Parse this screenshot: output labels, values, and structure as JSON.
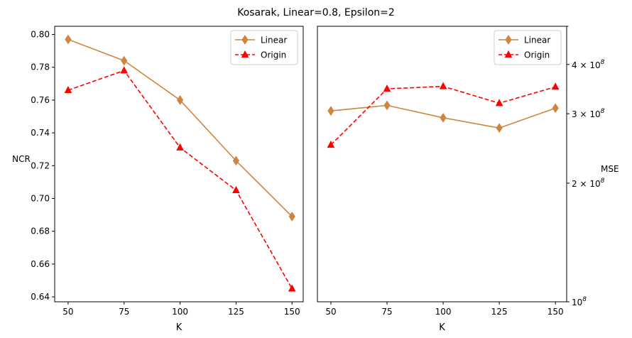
{
  "figure": {
    "title": "Kosarak, Linear=0.8, Epsilon=2"
  },
  "colors": {
    "linear": "#cd853f",
    "origin": "#ff0000",
    "axis": "#000000",
    "background": "#ffffff"
  },
  "chart_data": [
    {
      "type": "line",
      "title": "",
      "xlabel": "K",
      "ylabel": "NCR",
      "x": [
        50,
        75,
        100,
        125,
        150
      ],
      "xticks": [
        "50",
        "75",
        "100",
        "125",
        "150"
      ],
      "xlim": [
        44,
        155
      ],
      "yscale": "linear",
      "ylim": [
        0.637,
        0.805
      ],
      "yticks": [
        0.64,
        0.66,
        0.68,
        0.7,
        0.72,
        0.74,
        0.76,
        0.78,
        0.8
      ],
      "ytick_labels": [
        "0.64",
        "0.66",
        "0.68",
        "0.70",
        "0.72",
        "0.74",
        "0.76",
        "0.78",
        "0.80"
      ],
      "grid": false,
      "legend_position": "top-right",
      "series": [
        {
          "name": "Linear",
          "values": [
            0.797,
            0.784,
            0.76,
            0.723,
            0.689
          ],
          "color": "#cd853f",
          "linestyle": "solid",
          "marker": "diamond"
        },
        {
          "name": "Origin",
          "values": [
            0.766,
            0.778,
            0.731,
            0.705,
            0.645
          ],
          "color": "#ff0000",
          "linestyle": "dashed",
          "marker": "triangle"
        }
      ]
    },
    {
      "type": "line",
      "title": "",
      "xlabel": "K",
      "ylabel": "MSE",
      "ylabel_position": "right",
      "x": [
        50,
        75,
        100,
        125,
        150
      ],
      "xticks": [
        "50",
        "75",
        "100",
        "125",
        "150"
      ],
      "xlim": [
        44,
        155
      ],
      "yscale": "log",
      "ylim": [
        100000000,
        500000000
      ],
      "yticks": [
        100000000,
        200000000,
        300000000,
        400000000
      ],
      "ytick_labels": [
        {
          "base": "10",
          "exp": "8"
        },
        {
          "base": "2 × 10",
          "exp": "8"
        },
        {
          "base": "3 × 10",
          "exp": "8"
        },
        {
          "base": "4 × 10",
          "exp": "8"
        }
      ],
      "grid": false,
      "legend_position": "top-right",
      "series": [
        {
          "name": "Linear",
          "values": [
            305000000,
            315000000,
            293000000,
            276000000,
            310000000
          ],
          "color": "#cd853f",
          "linestyle": "solid",
          "marker": "diamond"
        },
        {
          "name": "Origin",
          "values": [
            250000000,
            347000000,
            352000000,
            319000000,
            351000000
          ],
          "color": "#ff0000",
          "linestyle": "dashed",
          "marker": "triangle"
        }
      ]
    }
  ]
}
